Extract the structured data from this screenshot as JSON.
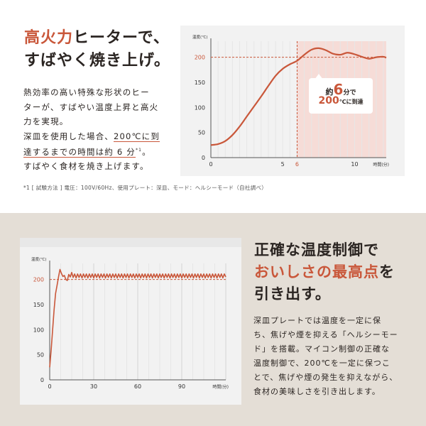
{
  "colors": {
    "accent": "#c9573a",
    "shade": "#f6dcd7",
    "bottom_bg": "#e4ded6",
    "chart_bg": "#f2f2f2"
  },
  "section1": {
    "title_line1_accent": "高火力",
    "title_line1_rest": "ヒーターで、",
    "title_line2": "すばやく焼き上げ。",
    "para_lines": [
      "熱効率の高い特殊な形状のヒー",
      "ターが、すばやい温度上昇と高火",
      "力を実現。",
      "深皿を使用した場合、"
    ],
    "para_ul1": "200℃に到",
    "para_ul2": "達するまでの時間は約 6 分",
    "para_sup": "*1",
    "para_after": "。",
    "para_last": "すばやく食材を焼き上げます。",
    "footnote": "*1 [ 試験方法 ] 電圧：100V/60Hz、使用プレート：深皿、モード：ヘルシーモード（自社調べ）",
    "callout": {
      "prefix": "約",
      "num": "6",
      "suffix": "分で",
      "temp": "200",
      "temp_unit": "℃に到達"
    }
  },
  "section2": {
    "title_line1": "正確な温度制御で",
    "title_line2_accent": "おいしさの最高点",
    "title_line2_rest": "を",
    "title_line3": "引き出す。",
    "para_lines": [
      "深皿プレートでは温度を一定に保",
      "ち、焦げや煙を抑える「ヘルシーモー",
      "ド」を搭載。マイコン制御の正確な",
      "温度制御で、200℃を一定に保つこ",
      "とで、焦げや煙の発生を抑えながら、",
      "食材の美味しさを引き出します。"
    ]
  },
  "chart_data": [
    {
      "type": "line",
      "ylabel": "温度(℃)",
      "xlabel": "時間(分)",
      "xlim": [
        0,
        12.2
      ],
      "ylim": [
        0,
        232
      ],
      "xticks": [
        "0",
        "5",
        "6",
        "10"
      ],
      "xtick_values": [
        0,
        5,
        6,
        10
      ],
      "yticks": [
        "0",
        "50",
        "100",
        "150",
        "200"
      ],
      "ytick_values": [
        0,
        50,
        100,
        150,
        200
      ],
      "reference_y": 200,
      "reference_x": 6,
      "shaded_from_x": 6,
      "points": [
        [
          0,
          25
        ],
        [
          0.5,
          27
        ],
        [
          1,
          33
        ],
        [
          1.5,
          45
        ],
        [
          2,
          62
        ],
        [
          2.5,
          82
        ],
        [
          3,
          102
        ],
        [
          3.5,
          122
        ],
        [
          4,
          143
        ],
        [
          4.5,
          163
        ],
        [
          5,
          177
        ],
        [
          5.5,
          186
        ],
        [
          6,
          193
        ],
        [
          6.5,
          205
        ],
        [
          7,
          215
        ],
        [
          7.5,
          218
        ],
        [
          8,
          214
        ],
        [
          8.5,
          207
        ],
        [
          9,
          205
        ],
        [
          9.5,
          209
        ],
        [
          10,
          206
        ],
        [
          10.5,
          201
        ],
        [
          11,
          197
        ],
        [
          11.5,
          200
        ],
        [
          12,
          201
        ],
        [
          12.2,
          199
        ]
      ]
    },
    {
      "type": "line",
      "ylabel": "温度(℃)",
      "xlabel": "時間(分)",
      "xlim": [
        0,
        120
      ],
      "ylim": [
        0,
        232
      ],
      "xticks": [
        "0",
        "30",
        "60",
        "90"
      ],
      "xtick_values": [
        0,
        30,
        60,
        90
      ],
      "yticks": [
        "0",
        "50",
        "100",
        "150",
        "200"
      ],
      "ytick_values": [
        0,
        50,
        100,
        150,
        200
      ],
      "reference_y": 200,
      "points": [
        [
          0,
          25
        ],
        [
          1,
          60
        ],
        [
          2,
          100
        ],
        [
          3,
          140
        ],
        [
          4,
          172
        ],
        [
          5,
          188
        ],
        [
          6,
          205
        ],
        [
          7,
          220
        ],
        [
          8,
          212
        ],
        [
          9,
          206
        ],
        [
          10,
          208
        ],
        [
          11,
          200
        ],
        [
          12,
          198
        ],
        [
          13,
          210
        ],
        [
          14,
          205
        ],
        [
          15,
          214
        ],
        [
          16,
          204
        ],
        [
          17,
          211
        ],
        [
          18,
          203
        ],
        [
          19,
          211
        ],
        [
          20,
          204
        ],
        [
          21,
          211
        ],
        [
          22,
          203
        ],
        [
          23,
          211
        ],
        [
          24,
          204
        ],
        [
          25,
          211
        ],
        [
          26,
          203
        ],
        [
          27,
          211
        ],
        [
          28,
          204
        ],
        [
          29,
          211
        ],
        [
          30,
          203
        ],
        [
          31,
          211
        ],
        [
          32,
          204
        ],
        [
          33,
          211
        ],
        [
          34,
          203
        ],
        [
          35,
          211
        ],
        [
          36,
          204
        ],
        [
          37,
          211
        ],
        [
          38,
          203
        ],
        [
          39,
          211
        ],
        [
          40,
          204
        ],
        [
          41,
          211
        ],
        [
          42,
          203
        ],
        [
          43,
          211
        ],
        [
          44,
          204
        ],
        [
          45,
          211
        ],
        [
          46,
          203
        ],
        [
          47,
          211
        ],
        [
          48,
          204
        ],
        [
          49,
          211
        ],
        [
          50,
          203
        ],
        [
          51,
          211
        ],
        [
          52,
          204
        ],
        [
          53,
          211
        ],
        [
          54,
          203
        ],
        [
          55,
          211
        ],
        [
          56,
          204
        ],
        [
          57,
          211
        ],
        [
          58,
          203
        ],
        [
          59,
          211
        ],
        [
          60,
          204
        ],
        [
          61,
          211
        ],
        [
          62,
          203
        ],
        [
          63,
          211
        ],
        [
          64,
          204
        ],
        [
          65,
          211
        ],
        [
          66,
          203
        ],
        [
          67,
          211
        ],
        [
          68,
          204
        ],
        [
          69,
          211
        ],
        [
          70,
          203
        ],
        [
          71,
          211
        ],
        [
          72,
          204
        ],
        [
          73,
          211
        ],
        [
          74,
          203
        ],
        [
          75,
          211
        ],
        [
          76,
          204
        ],
        [
          77,
          211
        ],
        [
          78,
          203
        ],
        [
          79,
          211
        ],
        [
          80,
          204
        ],
        [
          81,
          211
        ],
        [
          82,
          203
        ],
        [
          83,
          211
        ],
        [
          84,
          204
        ],
        [
          85,
          211
        ],
        [
          86,
          203
        ],
        [
          87,
          211
        ],
        [
          88,
          204
        ],
        [
          89,
          211
        ],
        [
          90,
          203
        ],
        [
          91,
          211
        ],
        [
          92,
          204
        ],
        [
          93,
          211
        ],
        [
          94,
          203
        ],
        [
          95,
          211
        ],
        [
          96,
          204
        ],
        [
          97,
          211
        ],
        [
          98,
          203
        ],
        [
          99,
          211
        ],
        [
          100,
          204
        ],
        [
          101,
          211
        ],
        [
          102,
          203
        ],
        [
          103,
          211
        ],
        [
          104,
          204
        ],
        [
          105,
          211
        ],
        [
          106,
          203
        ],
        [
          107,
          211
        ],
        [
          108,
          204
        ],
        [
          109,
          211
        ],
        [
          110,
          203
        ],
        [
          111,
          211
        ],
        [
          112,
          204
        ],
        [
          113,
          211
        ],
        [
          114,
          203
        ],
        [
          115,
          211
        ],
        [
          116,
          204
        ],
        [
          117,
          211
        ],
        [
          118,
          203
        ],
        [
          119,
          211
        ],
        [
          120,
          205
        ]
      ]
    }
  ]
}
